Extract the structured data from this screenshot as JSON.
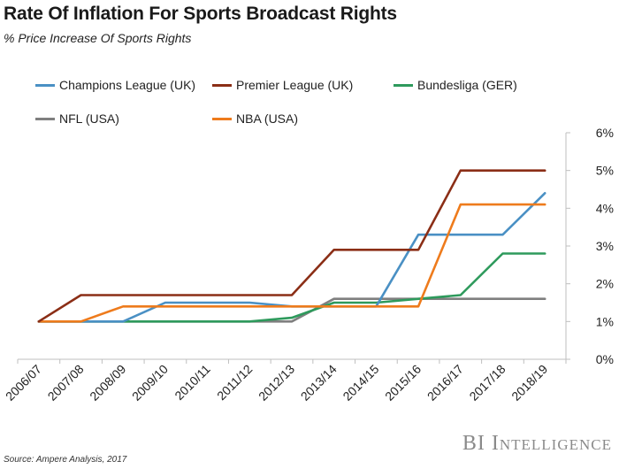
{
  "title": "Rate Of Inflation For Sports Broadcast Rights",
  "subtitle": "% Price Increase Of Sports Rights",
  "source": "Source: Ampere Analysis, 2017",
  "brand": "BI Intelligence",
  "chart_data": {
    "type": "line",
    "title": "Rate Of Inflation For Sports Broadcast Rights",
    "subtitle": "% Price Increase Of Sports Rights",
    "xlabel": "",
    "ylabel": "",
    "categories": [
      "2006/07",
      "2007/08",
      "2008/09",
      "2009/10",
      "2010/11",
      "2011/12",
      "2012/13",
      "2013/14",
      "2014/15",
      "2015/16",
      "2016/17",
      "2017/18",
      "2018/19"
    ],
    "yticks": [
      "0%",
      "1%",
      "2%",
      "3%",
      "4%",
      "5%",
      "6%"
    ],
    "ylim": [
      0,
      6
    ],
    "y_axis_side": "right",
    "grid": false,
    "legend_position": "top",
    "series": [
      {
        "name": "Champions League (UK)",
        "color": "#4a90c4",
        "values": [
          1.0,
          1.0,
          1.0,
          1.5,
          1.5,
          1.5,
          1.4,
          1.4,
          1.4,
          3.3,
          3.3,
          3.3,
          4.4
        ]
      },
      {
        "name": "Premier League (UK)",
        "color": "#8b2e16",
        "values": [
          1.0,
          1.7,
          1.7,
          1.7,
          1.7,
          1.7,
          1.7,
          2.9,
          2.9,
          2.9,
          5.0,
          5.0,
          5.0
        ]
      },
      {
        "name": "Bundesliga (GER)",
        "color": "#2e9a5c",
        "values": [
          1.0,
          1.0,
          1.0,
          1.0,
          1.0,
          1.0,
          1.1,
          1.5,
          1.5,
          1.6,
          1.7,
          2.8,
          2.8
        ]
      },
      {
        "name": "NFL (USA)",
        "color": "#7f7f7f",
        "values": [
          1.0,
          1.0,
          1.0,
          1.0,
          1.0,
          1.0,
          1.0,
          1.6,
          1.6,
          1.6,
          1.6,
          1.6,
          1.6
        ]
      },
      {
        "name": "NBA (USA)",
        "color": "#ee7b1c",
        "values": [
          1.0,
          1.0,
          1.4,
          1.4,
          1.4,
          1.4,
          1.4,
          1.4,
          1.4,
          1.4,
          4.1,
          4.1,
          4.1
        ]
      }
    ]
  }
}
